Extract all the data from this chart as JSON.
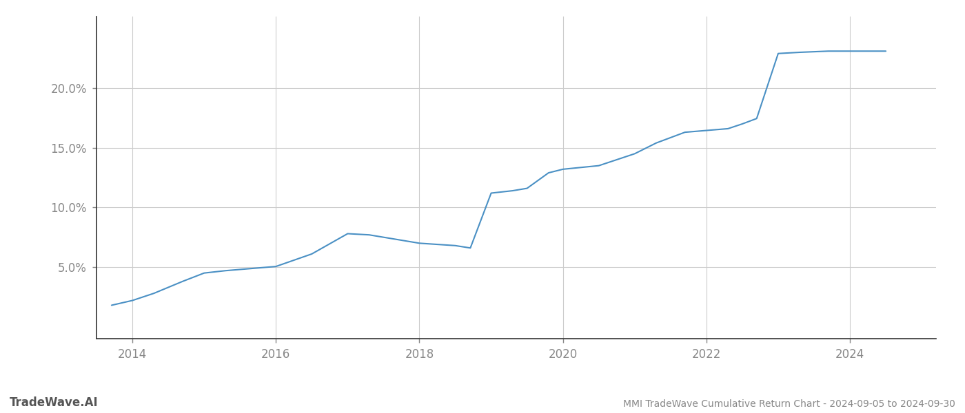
{
  "title": "MMI TradeWave Cumulative Return Chart - 2024-09-05 to 2024-09-30",
  "watermark": "TradeWave.AI",
  "line_color": "#4a90c4",
  "background_color": "#ffffff",
  "grid_color": "#cccccc",
  "x_years": [
    2013.71,
    2014.0,
    2014.3,
    2014.7,
    2015.0,
    2015.3,
    2015.7,
    2016.0,
    2016.5,
    2017.0,
    2017.3,
    2017.7,
    2018.0,
    2018.5,
    2018.71,
    2019.0,
    2019.3,
    2019.5,
    2019.8,
    2020.0,
    2020.5,
    2021.0,
    2021.3,
    2021.7,
    2022.0,
    2022.3,
    2022.5,
    2022.7,
    2023.0,
    2023.3,
    2023.5,
    2023.7,
    2024.0,
    2024.5
  ],
  "y_values": [
    1.8,
    2.2,
    2.8,
    3.8,
    4.5,
    4.7,
    4.9,
    5.05,
    6.1,
    7.8,
    7.7,
    7.3,
    7.0,
    6.8,
    6.6,
    11.2,
    11.4,
    11.6,
    12.9,
    13.2,
    13.5,
    14.5,
    15.4,
    16.3,
    16.45,
    16.6,
    17.0,
    17.45,
    22.9,
    23.0,
    23.05,
    23.1,
    23.1,
    23.1
  ],
  "xlim": [
    2013.5,
    2025.2
  ],
  "ylim": [
    -1.0,
    26.0
  ],
  "xticks": [
    2014,
    2016,
    2018,
    2020,
    2022,
    2024
  ],
  "yticks": [
    5.0,
    10.0,
    15.0,
    20.0
  ],
  "ytick_labels": [
    "5.0%",
    "10.0%",
    "15.0%",
    "20.0%"
  ],
  "line_width": 1.5,
  "title_fontsize": 10,
  "tick_fontsize": 12,
  "watermark_fontsize": 12
}
